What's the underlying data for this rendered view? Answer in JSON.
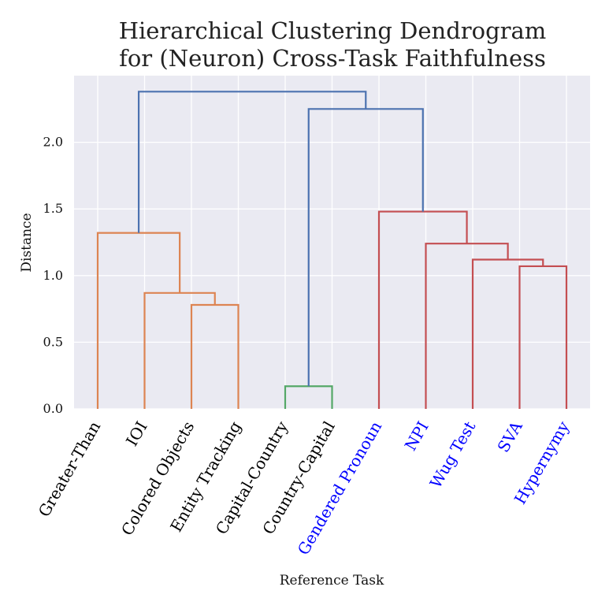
{
  "chart_data": {
    "type": "dendrogram",
    "title": [
      "Hierarchical Clustering Dendrogram",
      "for (Neuron) Cross-Task Faithfulness"
    ],
    "xlabel": "Reference Task",
    "ylabel": "Distance",
    "ylim": [
      0,
      2.5
    ],
    "yticks": [
      0.0,
      0.5,
      1.0,
      1.5,
      2.0
    ],
    "ytick_labels": [
      "0.0",
      "0.5",
      "1.0",
      "1.5",
      "2.0"
    ],
    "grid": true,
    "background": "#eaeaf2",
    "leaves": [
      {
        "label": "Greater-Than",
        "color": "#000000"
      },
      {
        "label": "IOI",
        "color": "#000000"
      },
      {
        "label": "Colored Objects",
        "color": "#000000"
      },
      {
        "label": "Entity Tracking",
        "color": "#000000"
      },
      {
        "label": "Capital-Country",
        "color": "#000000"
      },
      {
        "label": "Country-Capital",
        "color": "#000000"
      },
      {
        "label": "Gendered Pronoun",
        "color": "#0000ff"
      },
      {
        "label": "NPI",
        "color": "#0000ff"
      },
      {
        "label": "Wug Test",
        "color": "#0000ff"
      },
      {
        "label": "SVA",
        "color": "#0000ff"
      },
      {
        "label": "Hypernymy",
        "color": "#0000ff"
      }
    ],
    "links": [
      {
        "left": "leaf:2",
        "right": "leaf:3",
        "height": 0.78,
        "color": "#dd8452"
      },
      {
        "left": "leaf:1",
        "right": "link:0",
        "height": 0.87,
        "color": "#dd8452"
      },
      {
        "left": "leaf:0",
        "right": "link:1",
        "height": 1.32,
        "color": "#dd8452"
      },
      {
        "left": "leaf:4",
        "right": "leaf:5",
        "height": 0.17,
        "color": "#55a868"
      },
      {
        "left": "leaf:9",
        "right": "leaf:10",
        "height": 1.07,
        "color": "#c44e52"
      },
      {
        "left": "leaf:8",
        "right": "link:4",
        "height": 1.12,
        "color": "#c44e52"
      },
      {
        "left": "leaf:7",
        "right": "link:5",
        "height": 1.24,
        "color": "#c44e52"
      },
      {
        "left": "leaf:6",
        "right": "link:6",
        "height": 1.48,
        "color": "#c44e52"
      },
      {
        "left": "link:3",
        "right": "link:7",
        "height": 2.25,
        "color": "#4c72b0"
      },
      {
        "left": "link:2",
        "right": "link:8",
        "height": 2.38,
        "color": "#4c72b0"
      }
    ]
  }
}
